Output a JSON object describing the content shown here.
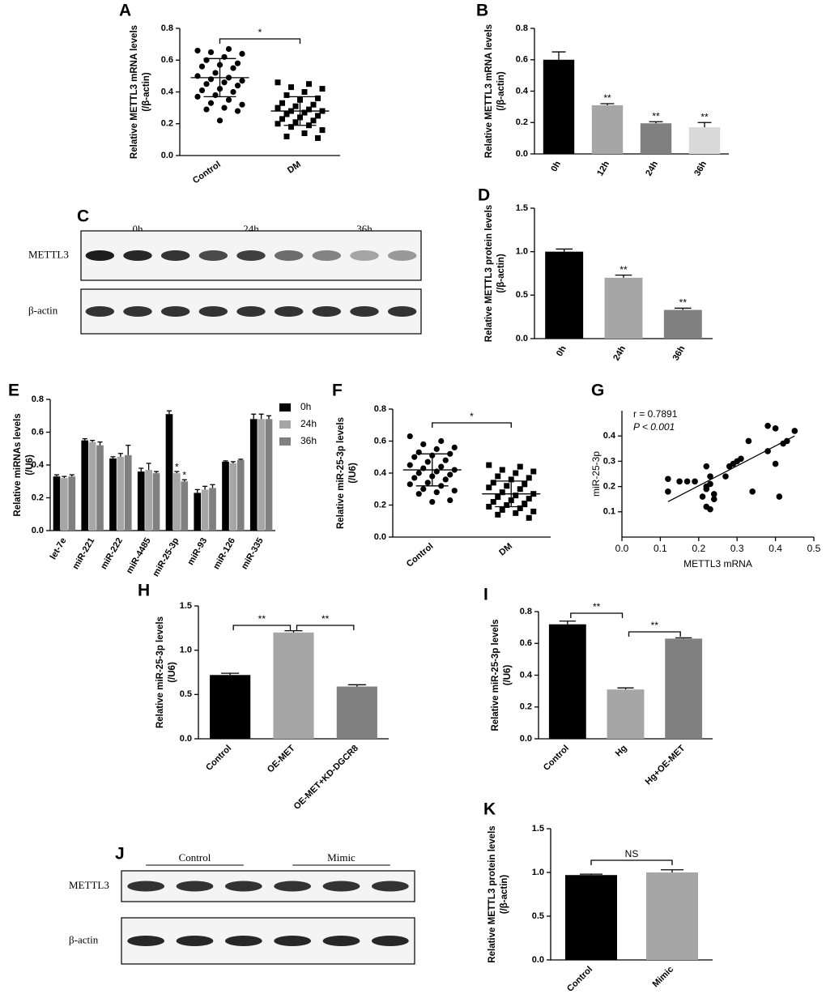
{
  "chart_data": [
    {
      "type": "dotplot",
      "panel_label": "A",
      "ylabel": [
        "Relative METTL3 mRNA  levels",
        "(/β-actin)"
      ],
      "ylim": [
        0,
        0.8
      ],
      "yticks": [
        {
          "value": 0,
          "label": "0.0"
        },
        0.2,
        0.4,
        0.6,
        0.8
      ],
      "groups": [
        {
          "name": "Control",
          "marker": "circle",
          "color": "#000000",
          "mean": 0.49,
          "sd": 0.12,
          "values": [
            0.66,
            0.67,
            0.65,
            0.64,
            0.62,
            0.6,
            0.58,
            0.57,
            0.56,
            0.55,
            0.52,
            0.5,
            0.49,
            0.48,
            0.47,
            0.46,
            0.45,
            0.44,
            0.42,
            0.41,
            0.4,
            0.38,
            0.37,
            0.35,
            0.33,
            0.32,
            0.3,
            0.29,
            0.28,
            0.22
          ]
        },
        {
          "name": "DM",
          "marker": "square",
          "color": "#000000",
          "mean": 0.28,
          "sd": 0.09,
          "values": [
            0.46,
            0.45,
            0.43,
            0.42,
            0.4,
            0.38,
            0.36,
            0.35,
            0.33,
            0.32,
            0.31,
            0.3,
            0.29,
            0.28,
            0.28,
            0.27,
            0.26,
            0.25,
            0.24,
            0.23,
            0.22,
            0.21,
            0.2,
            0.19,
            0.18,
            0.16,
            0.14,
            0.12,
            0.11
          ]
        }
      ],
      "comparisons": [
        {
          "between": [
            "Control",
            "DM"
          ],
          "label": "*"
        }
      ]
    },
    {
      "type": "bar",
      "panel_label": "B",
      "ylabel": [
        "Relative METTL3 mRNA  levels",
        "(/β-actin)"
      ],
      "ylim": [
        0,
        0.8
      ],
      "yticks": [
        {
          "value": 0,
          "label": "0.0"
        },
        0.2,
        0.4,
        0.6,
        0.8
      ],
      "categories": [
        "0h",
        "12h",
        "24h",
        "36h"
      ],
      "values": [
        0.6,
        0.31,
        0.195,
        0.17
      ],
      "errors": [
        0.05,
        0.01,
        0.01,
        0.03
      ],
      "colors": [
        "#000000",
        "#a6a6a6",
        "#808080",
        "#d9d9d9"
      ],
      "significance": [
        null,
        "**",
        "**",
        "**"
      ]
    },
    {
      "type": "blot",
      "panel_label": "C",
      "lane_groups": [
        "0h",
        "24h",
        "36h"
      ],
      "rows": [
        "METTL3",
        "β-actin"
      ]
    },
    {
      "type": "bar",
      "panel_label": "D",
      "ylabel": [
        "Relative METTL3 protein  levels",
        "(/β-actin)"
      ],
      "ylim": [
        0,
        1.5
      ],
      "yticks": [
        {
          "value": 0,
          "label": "0.0"
        },
        0.5,
        {
          "value": 1,
          "label": "1.0"
        },
        1.5
      ],
      "categories": [
        "0h",
        "24h",
        "36h"
      ],
      "values": [
        1.0,
        0.7,
        0.33
      ],
      "errors": [
        0.03,
        0.03,
        0.02
      ],
      "colors": [
        "#000000",
        "#a6a6a6",
        "#808080"
      ],
      "significance": [
        null,
        "**",
        "**"
      ]
    },
    {
      "type": "grouped_bar",
      "panel_label": "E",
      "ylabel": [
        "Relative miRNAs levels",
        "(/U6)"
      ],
      "ylim": [
        0,
        0.8
      ],
      "yticks": [
        {
          "value": 0,
          "label": "0.0"
        },
        0.2,
        0.4,
        0.6,
        0.8
      ],
      "categories": [
        "let-7e",
        "miR-221",
        "miR-222",
        "miR-4485",
        "miR-25-3p",
        "miR-93",
        "miR-126",
        "miR-335"
      ],
      "series": [
        {
          "name": "0h",
          "color": "#000000",
          "values": [
            0.33,
            0.55,
            0.44,
            0.36,
            0.71,
            0.23,
            0.42,
            0.68
          ],
          "errors": [
            0.01,
            0.01,
            0.01,
            0.02,
            0.02,
            0.02,
            0.005,
            0.03
          ]
        },
        {
          "name": "24h",
          "color": "#a6a6a6",
          "values": [
            0.32,
            0.54,
            0.45,
            0.37,
            0.35,
            0.25,
            0.41,
            0.68
          ],
          "errors": [
            0.01,
            0.01,
            0.02,
            0.04,
            0.01,
            0.02,
            0.01,
            0.03
          ],
          "significance": [
            null,
            null,
            null,
            null,
            "*",
            null,
            null,
            null
          ]
        },
        {
          "name": "36h",
          "color": "#808080",
          "values": [
            0.33,
            0.52,
            0.46,
            0.35,
            0.3,
            0.26,
            0.43,
            0.68
          ],
          "errors": [
            0.01,
            0.02,
            0.06,
            0.01,
            0.01,
            0.02,
            0.005,
            0.02
          ],
          "significance": [
            null,
            null,
            null,
            null,
            "*",
            null,
            null,
            null
          ]
        }
      ]
    },
    {
      "type": "dotplot",
      "panel_label": "F",
      "ylabel": [
        "Relative miR-25-3p levels",
        "(/U6)"
      ],
      "ylim": [
        0,
        0.8
      ],
      "yticks": [
        {
          "value": 0,
          "label": "0.0"
        },
        0.2,
        0.4,
        0.6,
        0.8
      ],
      "groups": [
        {
          "name": "Control",
          "marker": "circle",
          "color": "#000000",
          "mean": 0.42,
          "sd": 0.1,
          "values": [
            0.63,
            0.6,
            0.58,
            0.56,
            0.55,
            0.53,
            0.52,
            0.51,
            0.5,
            0.48,
            0.47,
            0.45,
            0.44,
            0.43,
            0.42,
            0.41,
            0.4,
            0.39,
            0.38,
            0.37,
            0.36,
            0.34,
            0.33,
            0.32,
            0.3,
            0.29,
            0.28,
            0.27,
            0.23,
            0.22
          ]
        },
        {
          "name": "DM",
          "marker": "square",
          "color": "#000000",
          "mean": 0.27,
          "sd": 0.08,
          "values": [
            0.45,
            0.44,
            0.42,
            0.41,
            0.4,
            0.38,
            0.37,
            0.36,
            0.34,
            0.33,
            0.32,
            0.31,
            0.3,
            0.28,
            0.27,
            0.26,
            0.25,
            0.24,
            0.23,
            0.22,
            0.21,
            0.2,
            0.19,
            0.18,
            0.17,
            0.16,
            0.15,
            0.14,
            0.12
          ]
        }
      ],
      "comparisons": [
        {
          "between": [
            "Control",
            "DM"
          ],
          "label": "*"
        }
      ]
    },
    {
      "type": "scatter",
      "panel_label": "G",
      "xlabel": "METTL3 mRNA",
      "ylabel": [
        "miR-25-3p"
      ],
      "annotations": [
        "r = 0.7891",
        "P < 0.001"
      ],
      "xlim": [
        0,
        0.5
      ],
      "xticks": [
        {
          "value": 0,
          "label": "0.0"
        },
        0.1,
        0.2,
        0.3,
        0.4,
        0.5
      ],
      "ylim": [
        0,
        0.5
      ],
      "yticks": [
        0.1,
        0.2,
        0.3,
        0.4
      ],
      "x": [
        0.12,
        0.12,
        0.15,
        0.17,
        0.19,
        0.21,
        0.22,
        0.22,
        0.23,
        0.22,
        0.23,
        0.23,
        0.24,
        0.24,
        0.22,
        0.27,
        0.28,
        0.29,
        0.3,
        0.31,
        0.33,
        0.34,
        0.38,
        0.38,
        0.4,
        0.41,
        0.42,
        0.43,
        0.45,
        0.4
      ],
      "y": [
        0.23,
        0.18,
        0.22,
        0.22,
        0.22,
        0.16,
        0.28,
        0.12,
        0.11,
        0.19,
        0.21,
        0.24,
        0.15,
        0.17,
        0.2,
        0.24,
        0.28,
        0.29,
        0.3,
        0.31,
        0.38,
        0.18,
        0.34,
        0.44,
        0.29,
        0.16,
        0.37,
        0.38,
        0.42,
        0.43
      ],
      "color": "#000000",
      "fit_x": [
        0.12,
        0.45
      ],
      "fit_y": [
        0.14,
        0.4
      ]
    },
    {
      "type": "bar",
      "panel_label": "H",
      "ylabel": [
        "Relative miR-25-3p levels",
        "(/U6)"
      ],
      "ylim": [
        0,
        1.5
      ],
      "yticks": [
        {
          "value": 0,
          "label": "0.0"
        },
        0.5,
        {
          "value": 1,
          "label": "1.0"
        },
        1.5
      ],
      "categories": [
        "Control",
        "OE-MET",
        "OE-MET+KD-DGCR8"
      ],
      "values": [
        0.72,
        1.2,
        0.59
      ],
      "errors": [
        0.02,
        0.02,
        0.02
      ],
      "colors": [
        "#000000",
        "#a6a6a6",
        "#808080"
      ],
      "comparisons": [
        {
          "between": [
            "Control",
            "OE-MET"
          ],
          "label": "**"
        },
        {
          "between": [
            "OE-MET",
            "OE-MET+KD-DGCR8"
          ],
          "label": "**"
        }
      ]
    },
    {
      "type": "bar",
      "panel_label": "I",
      "ylabel": [
        "Relative miR-25-3p levels",
        "(/U6)"
      ],
      "ylim": [
        0,
        0.8
      ],
      "yticks": [
        {
          "value": 0,
          "label": "0.0"
        },
        0.2,
        0.4,
        0.6,
        0.8
      ],
      "categories": [
        "Control",
        "Hg",
        "Hg+OE-MET"
      ],
      "values": [
        0.72,
        0.31,
        0.63
      ],
      "errors": [
        0.02,
        0.01,
        0.005
      ],
      "colors": [
        "#000000",
        "#a6a6a6",
        "#808080"
      ],
      "comparisons": [
        {
          "between": [
            "Control",
            "Hg"
          ],
          "label": "**"
        },
        {
          "between": [
            "Hg",
            "Hg+OE-MET"
          ],
          "label": "**"
        }
      ]
    },
    {
      "type": "blot",
      "panel_label": "J",
      "lane_groups": [
        "Control",
        "Mimic"
      ],
      "rows": [
        "METTL3",
        "β-actin"
      ]
    },
    {
      "type": "bar",
      "panel_label": "K",
      "ylabel": [
        "Relative METTL3 protein levels",
        "(/β-actin)"
      ],
      "ylim": [
        0,
        1.5
      ],
      "yticks": [
        {
          "value": 0,
          "label": "0.0"
        },
        0.5,
        {
          "value": 1,
          "label": "1.0"
        },
        1.5
      ],
      "categories": [
        "Control",
        "Mimic"
      ],
      "values": [
        0.97,
        1.0
      ],
      "errors": [
        0.01,
        0.03
      ],
      "colors": [
        "#000000",
        "#a6a6a6"
      ],
      "comparisons": [
        {
          "between": [
            "Control",
            "Mimic"
          ],
          "label": "NS"
        }
      ]
    }
  ]
}
